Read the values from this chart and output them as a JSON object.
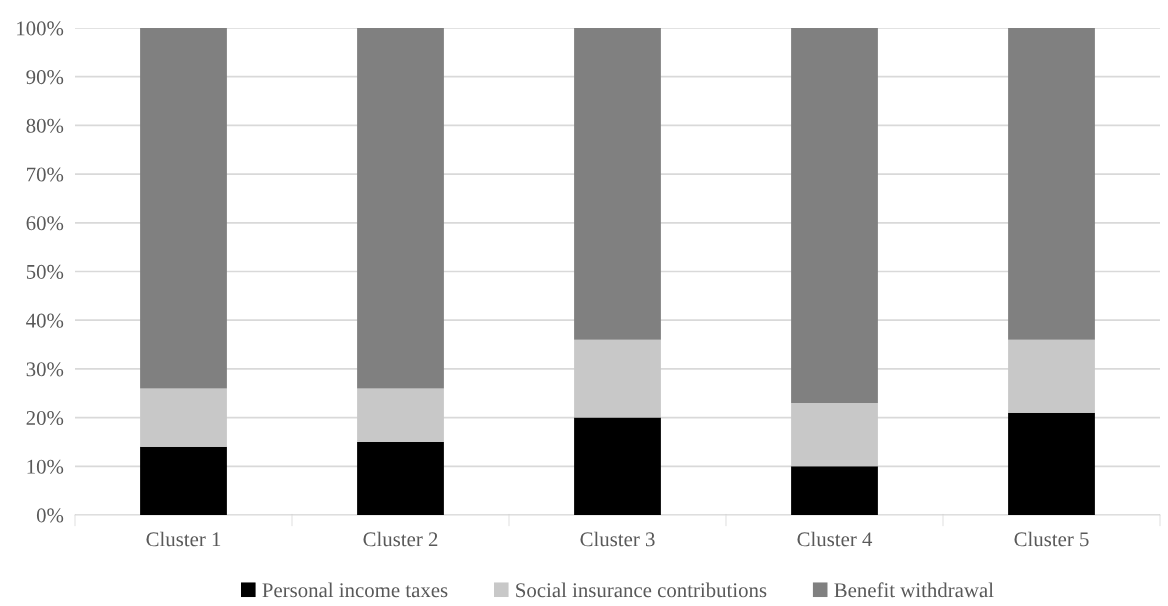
{
  "chart_data": {
    "type": "bar",
    "stacked": true,
    "categories": [
      "Cluster 1",
      "Cluster 2",
      "Cluster 3",
      "Cluster 4",
      "Cluster 5"
    ],
    "series": [
      {
        "name": "Personal income taxes",
        "color": "#000000",
        "values": [
          14,
          15,
          20,
          10,
          21
        ]
      },
      {
        "name": "Social insurance contributions",
        "color": "#c8c8c8",
        "values": [
          12,
          11,
          16,
          13,
          15
        ]
      },
      {
        "name": "Benefit withdrawal",
        "color": "#808080",
        "values": [
          74,
          74,
          64,
          77,
          64
        ]
      }
    ],
    "ylim": [
      0,
      100
    ],
    "yticks": [
      {
        "value": 0,
        "label": "0%"
      },
      {
        "value": 10,
        "label": "10%"
      },
      {
        "value": 20,
        "label": "20%"
      },
      {
        "value": 30,
        "label": "30%"
      },
      {
        "value": 40,
        "label": "40%"
      },
      {
        "value": 50,
        "label": "50%"
      },
      {
        "value": 60,
        "label": "60%"
      },
      {
        "value": 70,
        "label": "70%"
      },
      {
        "value": 80,
        "label": "80%"
      },
      {
        "value": 90,
        "label": "90%"
      },
      {
        "value": 100,
        "label": "100%"
      }
    ],
    "grid": "y",
    "legend": "bottom"
  }
}
